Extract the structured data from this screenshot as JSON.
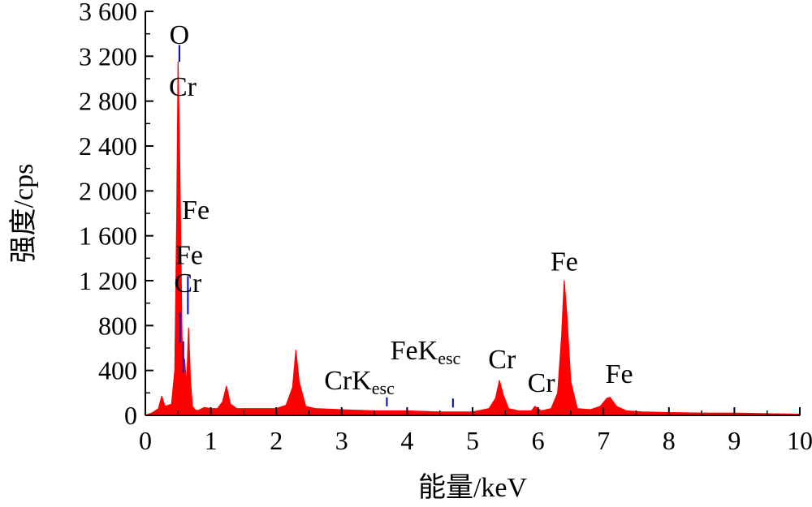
{
  "chart_data": {
    "type": "area",
    "title": "",
    "xlabel": "能量/keV",
    "ylabel": "强度/cps",
    "xlim": [
      0,
      10
    ],
    "ylim": [
      0,
      3600
    ],
    "x_ticks": [
      0,
      1,
      2,
      3,
      4,
      5,
      6,
      7,
      8,
      9,
      10
    ],
    "x_tick_labels": [
      "0",
      "1",
      "2",
      "3",
      "4",
      "5",
      "6",
      "7",
      "8",
      "9",
      "10"
    ],
    "y_ticks": [
      0,
      400,
      800,
      1200,
      1600,
      2000,
      2400,
      2800,
      3200,
      3600
    ],
    "y_tick_labels": [
      "0",
      "400",
      "800",
      "1 200",
      "1 600",
      "2 000",
      "2 400",
      "2 800",
      "3 200",
      "3 600"
    ],
    "grid": false,
    "legend": "none",
    "fill_color": "#ff0000",
    "marker_color": "#0000cc",
    "series": [
      {
        "x": [
          0,
          0.1,
          0.2,
          0.25,
          0.3,
          0.4,
          0.45,
          0.48,
          0.5,
          0.52,
          0.54,
          0.56,
          0.58,
          0.6,
          0.63,
          0.66,
          0.69,
          0.72,
          0.76,
          0.8,
          0.9,
          1.0,
          1.1,
          1.18,
          1.24,
          1.3,
          1.4,
          1.6,
          1.8,
          2.0,
          2.15,
          2.25,
          2.3,
          2.35,
          2.45,
          2.6,
          3.0,
          3.5,
          3.7,
          4.0,
          4.5,
          4.7,
          5.0,
          5.25,
          5.35,
          5.41,
          5.47,
          5.55,
          5.7,
          5.9,
          5.95,
          6.05,
          6.2,
          6.3,
          6.36,
          6.4,
          6.44,
          6.5,
          6.6,
          6.8,
          6.95,
          7.05,
          7.1,
          7.2,
          7.35,
          7.6,
          8.0,
          8.5,
          9.0,
          9.5,
          10.0
        ],
        "values": [
          0,
          20,
          60,
          170,
          80,
          100,
          400,
          1800,
          3150,
          2500,
          1600,
          700,
          300,
          500,
          250,
          780,
          300,
          80,
          50,
          40,
          70,
          60,
          60,
          120,
          260,
          100,
          60,
          60,
          60,
          60,
          90,
          250,
          580,
          300,
          80,
          60,
          50,
          40,
          40,
          40,
          30,
          30,
          30,
          60,
          150,
          310,
          180,
          60,
          40,
          40,
          80,
          40,
          60,
          200,
          700,
          1200,
          900,
          300,
          60,
          50,
          80,
          150,
          160,
          80,
          40,
          30,
          25,
          20,
          20,
          15,
          10
        ]
      }
    ],
    "annotations": [
      {
        "text": "O",
        "x": 0.52,
        "y": 3310
      },
      {
        "text": "Cr",
        "x": 0.57,
        "y": 2850
      },
      {
        "text": "Fe",
        "x": 0.77,
        "y": 1750
      },
      {
        "text": "Fe",
        "x": 0.67,
        "y": 1350
      },
      {
        "text": "Cr",
        "x": 0.65,
        "y": 1100
      },
      {
        "text": "Fe",
        "x": 6.4,
        "y": 1290
      },
      {
        "text": "Cr",
        "x": 5.45,
        "y": 420
      },
      {
        "text": "Cr",
        "x": 6.05,
        "y": 210
      },
      {
        "text": "Fe",
        "x": 7.24,
        "y": 290
      },
      {
        "text": "CrK",
        "sub": "esc",
        "x": 3.27,
        "y": 230
      },
      {
        "text": "FeK",
        "sub": "esc",
        "x": 4.28,
        "y": 500
      }
    ],
    "markers": [
      {
        "x": 0.52,
        "y0": 3150,
        "y1": 3300
      },
      {
        "x": 0.53,
        "y0": 650,
        "y1": 920
      },
      {
        "x": 0.58,
        "y0": 380,
        "y1": 660
      },
      {
        "x": 0.65,
        "y0": 900,
        "y1": 1240
      },
      {
        "x": 3.69,
        "y0": 80,
        "y1": 160
      },
      {
        "x": 4.7,
        "y0": 70,
        "y1": 150
      }
    ]
  }
}
